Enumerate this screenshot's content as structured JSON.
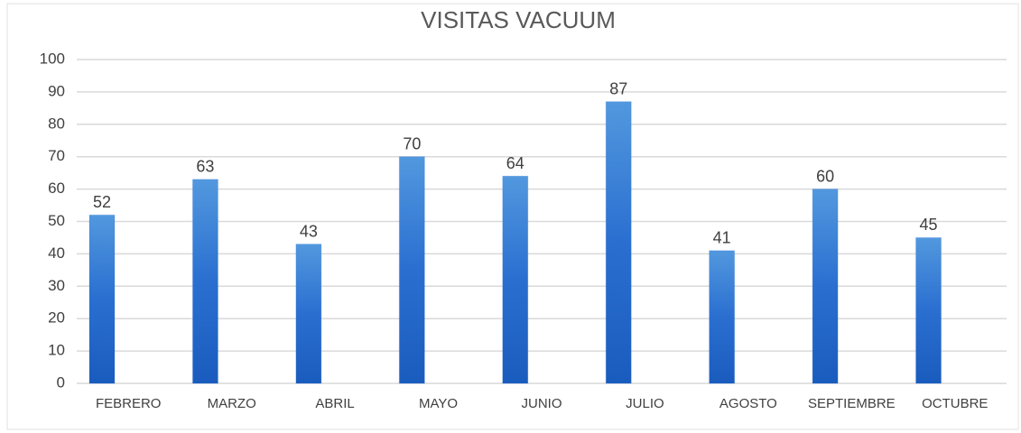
{
  "chart_data": {
    "type": "bar",
    "title": "VISITAS VACUUM",
    "categories": [
      "FEBRERO",
      "MARZO",
      "ABRIL",
      "MAYO",
      "JUNIO",
      "JULIO",
      "AGOSTO",
      "SEPTIEMBRE",
      "OCTUBRE"
    ],
    "values": [
      52,
      63,
      43,
      70,
      64,
      87,
      41,
      60,
      45
    ],
    "color": "#2a6fd0",
    "ylim": [
      0,
      100
    ],
    "yticks": [
      0,
      10,
      20,
      30,
      40,
      50,
      60,
      70,
      80,
      90,
      100
    ],
    "grid": true
  }
}
